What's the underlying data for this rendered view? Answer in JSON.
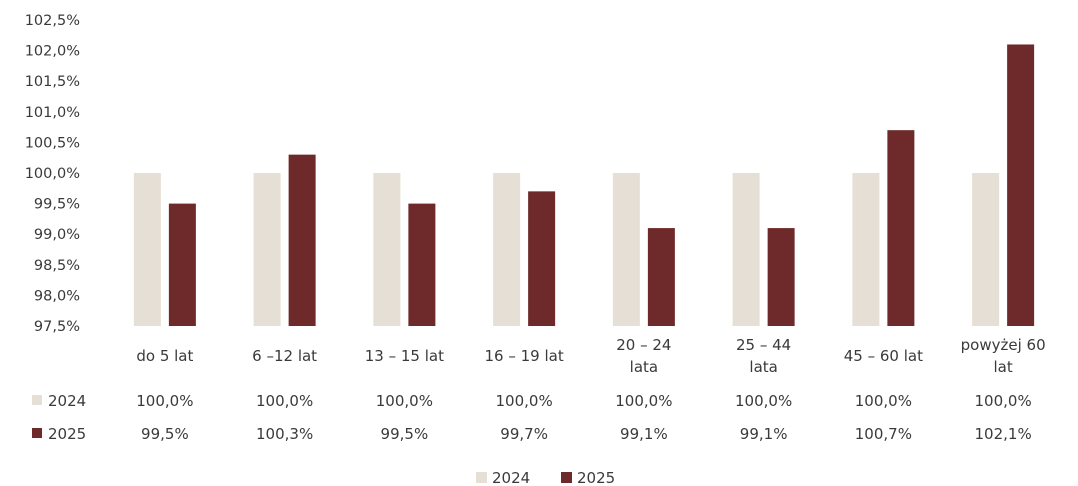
{
  "chart_data": {
    "type": "bar",
    "title": "",
    "xlabel": "",
    "ylabel": "",
    "ylim": [
      97.5,
      102.5
    ],
    "y_ticks": [
      "97,5%",
      "98,0%",
      "98,5%",
      "99,0%",
      "99,5%",
      "100,0%",
      "100,5%",
      "101,0%",
      "101,5%",
      "102,0%",
      "102,5%"
    ],
    "categories": [
      [
        "do 5 lat"
      ],
      [
        "6 –12 lat"
      ],
      [
        "13 – 15 lat"
      ],
      [
        "16 – 19 lat"
      ],
      [
        "20 – 24",
        "lata"
      ],
      [
        "25 – 44",
        "lata"
      ],
      [
        "45 – 60 lat"
      ],
      [
        "powyżej 60",
        "lat"
      ]
    ],
    "series": [
      {
        "name": "2024",
        "color": "#e6dfd5",
        "values": [
          100.0,
          100.0,
          100.0,
          100.0,
          100.0,
          100.0,
          100.0,
          100.0
        ],
        "labels": [
          "100,0%",
          "100,0%",
          "100,0%",
          "100,0%",
          "100,0%",
          "100,0%",
          "100,0%",
          "100,0%"
        ]
      },
      {
        "name": "2025",
        "color": "#6e2a2a",
        "values": [
          99.5,
          100.3,
          99.5,
          99.7,
          99.1,
          99.1,
          100.7,
          102.1
        ],
        "labels": [
          "99,5%",
          "100,3%",
          "99,5%",
          "99,7%",
          "99,1%",
          "99,1%",
          "100,7%",
          "102,1%"
        ]
      }
    ],
    "grid": false,
    "legend": "bottom-center",
    "data_table": true
  }
}
